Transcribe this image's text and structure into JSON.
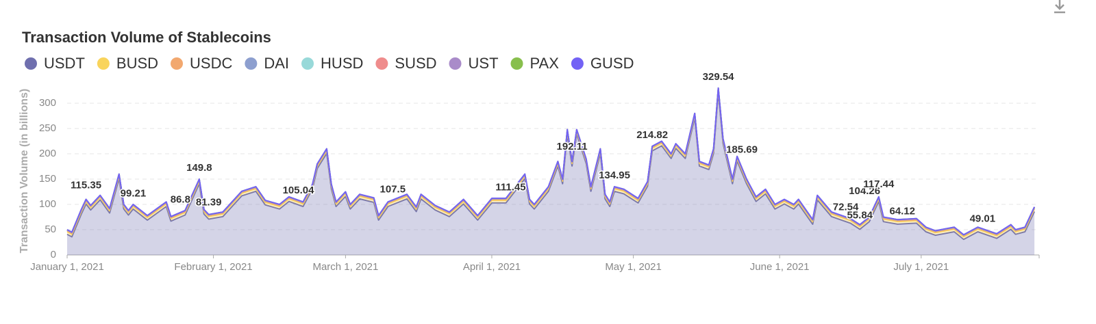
{
  "chart_data": {
    "type": "stacked_area",
    "title": "Transaction Volume of Stablecoins",
    "y_label": "Transaction Volume (in billions)",
    "x": [
      "2021-01-01",
      "2021-01-02",
      "2021-01-04",
      "2021-01-05",
      "2021-01-06",
      "2021-01-08",
      "2021-01-10",
      "2021-01-12",
      "2021-01-13",
      "2021-01-14",
      "2021-01-15",
      "2021-01-18",
      "2021-01-22",
      "2021-01-23",
      "2021-01-26",
      "2021-01-29",
      "2021-01-30",
      "2021-01-31",
      "2021-02-03",
      "2021-02-07",
      "2021-02-10",
      "2021-02-12",
      "2021-02-15",
      "2021-02-17",
      "2021-02-20",
      "2021-02-22",
      "2021-02-23",
      "2021-02-25",
      "2021-02-26",
      "2021-02-27",
      "2021-03-01",
      "2021-03-02",
      "2021-03-04",
      "2021-03-07",
      "2021-03-08",
      "2021-03-10",
      "2021-03-14",
      "2021-03-16",
      "2021-03-17",
      "2021-03-20",
      "2021-03-23",
      "2021-03-26",
      "2021-03-29",
      "2021-04-01",
      "2021-04-04",
      "2021-04-08",
      "2021-04-09",
      "2021-04-10",
      "2021-04-13",
      "2021-04-15",
      "2021-04-16",
      "2021-04-17",
      "2021-04-18",
      "2021-04-19",
      "2021-04-21",
      "2021-04-22",
      "2021-04-24",
      "2021-04-25",
      "2021-04-26",
      "2021-04-27",
      "2021-04-29",
      "2021-05-02",
      "2021-05-04",
      "2021-05-05",
      "2021-05-07",
      "2021-05-09",
      "2021-05-10",
      "2021-05-12",
      "2021-05-14",
      "2021-05-15",
      "2021-05-17",
      "2021-05-18",
      "2021-05-19",
      "2021-05-20",
      "2021-05-22",
      "2021-05-23",
      "2021-05-25",
      "2021-05-27",
      "2021-05-29",
      "2021-05-31",
      "2021-06-02",
      "2021-06-04",
      "2021-06-05",
      "2021-06-08",
      "2021-06-09",
      "2021-06-12",
      "2021-06-16",
      "2021-06-18",
      "2021-06-20",
      "2021-06-22",
      "2021-06-23",
      "2021-06-26",
      "2021-06-30",
      "2021-07-02",
      "2021-07-04",
      "2021-07-08",
      "2021-07-10",
      "2021-07-13",
      "2021-07-17",
      "2021-07-20",
      "2021-07-21",
      "2021-07-23",
      "2021-07-25"
    ],
    "series": [
      {
        "name": "USDT",
        "color": "#6f6fae",
        "values": [
          41,
          36,
          81,
          101,
          89,
          109,
          83,
          151,
          91,
          79,
          91,
          69,
          96,
          67,
          79,
          141,
          81,
          71,
          76,
          117,
          126,
          99,
          91,
          106,
          96,
          131,
          171,
          201,
          131,
          96,
          116,
          91,
          111,
          104,
          69,
          96,
          111,
          86,
          111,
          89,
          76,
          101,
          69,
          103,
          103,
          151,
          101,
          91,
          126,
          176,
          141,
          239,
          176,
          239,
          181,
          126,
          201,
          111,
          96,
          126,
          121,
          103,
          136,
          206,
          216,
          191,
          211,
          191,
          271,
          176,
          169,
          201,
          321,
          221,
          141,
          186,
          141,
          106,
          121,
          91,
          101,
          91,
          101,
          61,
          109,
          76,
          63,
          51,
          66,
          106,
          66,
          61,
          63,
          46,
          39,
          46,
          31,
          46,
          33,
          51,
          41,
          46,
          86
        ]
      },
      {
        "name": "BUSD",
        "color": "#f9d45c",
        "values": [
          5,
          5,
          5,
          5,
          5,
          5,
          5,
          5,
          5,
          5,
          5,
          5,
          5,
          5,
          5,
          5,
          5,
          5,
          5,
          5,
          5,
          5,
          5,
          5,
          5,
          5,
          5,
          5,
          5,
          5,
          5,
          5,
          5,
          5,
          5,
          5,
          5,
          5,
          5,
          5,
          5,
          5,
          5,
          5,
          5,
          5,
          5,
          5,
          5,
          5,
          5,
          5,
          5,
          5,
          5,
          5,
          5,
          5,
          5,
          5,
          5,
          5,
          5,
          5,
          5,
          5,
          5,
          5,
          5,
          5,
          5,
          5,
          5,
          5,
          5,
          5,
          5,
          5,
          5,
          5,
          5,
          5,
          5,
          5,
          5,
          5,
          5,
          5,
          5,
          5,
          5,
          5,
          5,
          5,
          5,
          5,
          5,
          5,
          5,
          5,
          5,
          5,
          5
        ]
      },
      {
        "name": "USDC",
        "color": "#f2a86f",
        "values": [
          2,
          2,
          2,
          2,
          2,
          2,
          2,
          2,
          2,
          2,
          2,
          2,
          2,
          2,
          2,
          2,
          2,
          2,
          2,
          2,
          2,
          2,
          2,
          2,
          2,
          2,
          2,
          2,
          2,
          2,
          2,
          2,
          2,
          2,
          2,
          2,
          2,
          2,
          2,
          2,
          2,
          2,
          2,
          2,
          2,
          2,
          2,
          2,
          2,
          2,
          2,
          2,
          2,
          2,
          2,
          2,
          2,
          2,
          2,
          2,
          2,
          2,
          2,
          2,
          2,
          2,
          2,
          2,
          2,
          2,
          2,
          2,
          2,
          2,
          2,
          2,
          2,
          2,
          2,
          2,
          2,
          2,
          2,
          2,
          2,
          2,
          2,
          2,
          2,
          2,
          2,
          2,
          2,
          2,
          2,
          2,
          2,
          2,
          2,
          2,
          2,
          2,
          2
        ]
      },
      {
        "name": "DAI",
        "color": "#8d9fcf",
        "values": [
          1,
          1,
          1,
          1,
          1,
          1,
          1,
          1,
          1,
          1,
          1,
          1,
          1,
          1,
          1,
          1,
          1,
          1,
          1,
          1,
          1,
          1,
          1,
          1,
          1,
          1,
          1,
          1,
          1,
          1,
          1,
          1,
          1,
          1,
          1,
          1,
          1,
          1,
          1,
          1,
          1,
          1,
          1,
          1,
          1,
          1,
          1,
          1,
          1,
          1,
          1,
          1,
          1,
          1,
          1,
          1,
          1,
          1,
          1,
          1,
          1,
          1,
          1,
          1,
          1,
          1,
          1,
          1,
          1,
          1,
          1,
          1,
          1,
          1,
          1,
          1,
          1,
          1,
          1,
          1,
          1,
          1,
          1,
          1,
          1,
          1,
          1,
          1,
          1,
          1,
          1,
          1,
          1,
          1,
          1,
          1,
          1,
          1,
          1,
          1,
          1,
          1,
          1
        ]
      },
      {
        "name": "HUSD",
        "color": "#98d9d9",
        "values": [
          0.2,
          0.2,
          0.2,
          0.2,
          0.2,
          0.2,
          0.2,
          0.2,
          0.2,
          0.2,
          0.2,
          0.2,
          0.2,
          0.2,
          0.2,
          0.2,
          0.2,
          0.2,
          0.2,
          0.2,
          0.2,
          0.2,
          0.2,
          0.2,
          0.2,
          0.2,
          0.2,
          0.2,
          0.2,
          0.2,
          0.2,
          0.2,
          0.2,
          0.2,
          0.2,
          0.2,
          0.2,
          0.2,
          0.2,
          0.2,
          0.2,
          0.2,
          0.2,
          0.2,
          0.2,
          0.2,
          0.2,
          0.2,
          0.2,
          0.2,
          0.2,
          0.2,
          0.2,
          0.2,
          0.2,
          0.2,
          0.2,
          0.2,
          0.2,
          0.2,
          0.2,
          0.2,
          0.2,
          0.2,
          0.2,
          0.2,
          0.2,
          0.2,
          0.2,
          0.2,
          0.2,
          0.2,
          0.2,
          0.2,
          0.2,
          0.2,
          0.2,
          0.2,
          0.2,
          0.2,
          0.2,
          0.2,
          0.2,
          0.2,
          0.2,
          0.2,
          0.2,
          0.2,
          0.2,
          0.2,
          0.2,
          0.2,
          0.2,
          0.2,
          0.2,
          0.2,
          0.2,
          0.2,
          0.2,
          0.2,
          0.2,
          0.2,
          0.2
        ]
      },
      {
        "name": "SUSD",
        "color": "#ef8c8c",
        "values": [
          0.1,
          0.1,
          0.1,
          0.1,
          0.1,
          0.1,
          0.1,
          0.1,
          0.1,
          0.1,
          0.1,
          0.1,
          0.1,
          0.1,
          0.1,
          0.1,
          0.1,
          0.1,
          0.1,
          0.1,
          0.1,
          0.1,
          0.1,
          0.1,
          0.1,
          0.1,
          0.1,
          0.1,
          0.1,
          0.1,
          0.1,
          0.1,
          0.1,
          0.1,
          0.1,
          0.1,
          0.1,
          0.1,
          0.1,
          0.1,
          0.1,
          0.1,
          0.1,
          0.1,
          0.1,
          0.1,
          0.1,
          0.1,
          0.1,
          0.1,
          0.1,
          0.1,
          0.1,
          0.1,
          0.1,
          0.1,
          0.1,
          0.1,
          0.1,
          0.1,
          0.1,
          0.1,
          0.1,
          0.1,
          0.1,
          0.1,
          0.1,
          0.1,
          0.1,
          0.1,
          0.1,
          0.1,
          0.1,
          0.1,
          0.1,
          0.1,
          0.1,
          0.1,
          0.1,
          0.1,
          0.1,
          0.1,
          0.1,
          0.1,
          0.1,
          0.1,
          0.1,
          0.1,
          0.1,
          0.1,
          0.1,
          0.1,
          0.1,
          0.1,
          0.1,
          0.1,
          0.1,
          0.1,
          0.1,
          0.1,
          0.1,
          0.1,
          0.1
        ]
      },
      {
        "name": "UST",
        "color": "#a98bc9",
        "values": [
          0.5,
          0.5,
          0.5,
          0.5,
          0.5,
          0.5,
          0.5,
          0.5,
          0.5,
          0.5,
          0.5,
          0.5,
          0.5,
          0.5,
          0.5,
          0.5,
          0.5,
          0.5,
          0.5,
          0.5,
          0.5,
          0.5,
          0.5,
          0.5,
          0.5,
          0.5,
          0.5,
          0.5,
          0.5,
          0.5,
          0.5,
          0.5,
          0.5,
          0.5,
          0.5,
          0.5,
          0.5,
          0.5,
          0.5,
          0.5,
          0.5,
          0.5,
          0.5,
          0.5,
          0.5,
          0.5,
          0.5,
          0.5,
          0.5,
          0.5,
          0.5,
          0.5,
          0.5,
          0.5,
          0.5,
          0.5,
          0.5,
          0.5,
          0.5,
          0.5,
          0.5,
          0.5,
          0.5,
          0.5,
          0.5,
          0.5,
          0.5,
          0.5,
          0.5,
          0.5,
          0.5,
          0.5,
          0.5,
          0.5,
          0.5,
          0.5,
          0.5,
          0.5,
          0.5,
          0.5,
          0.5,
          0.5,
          0.5,
          0.5,
          0.5,
          0.5,
          0.5,
          0.5,
          0.5,
          0.5,
          0.5,
          0.5,
          0.5,
          0.5,
          0.5,
          0.5,
          0.5,
          0.5,
          0.5,
          0.5,
          0.5,
          0.5,
          0.5
        ]
      },
      {
        "name": "PAX",
        "color": "#88bf4d",
        "values": [
          0.1,
          0.1,
          0.1,
          0.1,
          0.1,
          0.1,
          0.1,
          0.1,
          0.1,
          0.1,
          0.1,
          0.1,
          0.1,
          0.1,
          0.1,
          0.1,
          0.1,
          0.1,
          0.1,
          0.1,
          0.1,
          0.1,
          0.1,
          0.1,
          0.1,
          0.1,
          0.1,
          0.1,
          0.1,
          0.1,
          0.1,
          0.1,
          0.1,
          0.1,
          0.1,
          0.1,
          0.1,
          0.1,
          0.1,
          0.1,
          0.1,
          0.1,
          0.1,
          0.1,
          0.1,
          0.1,
          0.1,
          0.1,
          0.1,
          0.1,
          0.1,
          0.1,
          0.1,
          0.1,
          0.1,
          0.1,
          0.1,
          0.1,
          0.1,
          0.1,
          0.1,
          0.1,
          0.1,
          0.1,
          0.1,
          0.1,
          0.1,
          0.1,
          0.1,
          0.1,
          0.1,
          0.1,
          0.1,
          0.1,
          0.1,
          0.1,
          0.1,
          0.1,
          0.1,
          0.1,
          0.1,
          0.1,
          0.1,
          0.1,
          0.1,
          0.1,
          0.1,
          0.1,
          0.1,
          0.1,
          0.1,
          0.1,
          0.1,
          0.1,
          0.1,
          0.1,
          0.1,
          0.1,
          0.1,
          0.1,
          0.1,
          0.1,
          0.1
        ]
      },
      {
        "name": "GUSD",
        "color": "#7362f5",
        "values": [
          0.1,
          0.1,
          0.1,
          0.1,
          0.1,
          0.1,
          0.1,
          0.1,
          0.1,
          0.1,
          0.1,
          0.1,
          0.1,
          0.1,
          0.1,
          0.1,
          0.1,
          0.1,
          0.1,
          0.1,
          0.1,
          0.1,
          0.1,
          0.1,
          0.1,
          0.1,
          0.1,
          0.1,
          0.1,
          0.1,
          0.1,
          0.1,
          0.1,
          0.1,
          0.1,
          0.1,
          0.1,
          0.1,
          0.1,
          0.1,
          0.1,
          0.1,
          0.1,
          0.1,
          0.1,
          0.1,
          0.1,
          0.1,
          0.1,
          0.1,
          0.1,
          0.1,
          0.1,
          0.1,
          0.1,
          0.1,
          0.1,
          0.1,
          0.1,
          0.1,
          0.1,
          0.1,
          0.1,
          0.1,
          0.1,
          0.1,
          0.1,
          0.1,
          0.1,
          0.1,
          0.1,
          0.1,
          0.1,
          0.1,
          0.1,
          0.1,
          0.1,
          0.1,
          0.1,
          0.1,
          0.1,
          0.1,
          0.1,
          0.1,
          0.1,
          0.1,
          0.1,
          0.1,
          0.1,
          0.1,
          0.1,
          0.1,
          0.1,
          0.1,
          0.1,
          0.1,
          0.1,
          0.1,
          0.1,
          0.1,
          0.1,
          0.1,
          0.1
        ]
      }
    ],
    "annotations": [
      {
        "x": "2021-01-05",
        "value": 115.35
      },
      {
        "x": "2021-01-15",
        "value": 99.21
      },
      {
        "x": "2021-01-25",
        "value": 86.8
      },
      {
        "x": "2021-01-29",
        "value": 149.8
      },
      {
        "x": "2021-01-31",
        "value": 81.39
      },
      {
        "x": "2021-02-19",
        "value": 105.04
      },
      {
        "x": "2021-03-11",
        "value": 107.5
      },
      {
        "x": "2021-04-05",
        "value": 111.45
      },
      {
        "x": "2021-04-18",
        "value": 192.11
      },
      {
        "x": "2021-04-27",
        "value": 134.95
      },
      {
        "x": "2021-05-05",
        "value": 214.82
      },
      {
        "x": "2021-05-19",
        "value": 329.54
      },
      {
        "x": "2021-05-24",
        "value": 185.69
      },
      {
        "x": "2021-06-15",
        "value": 72.54
      },
      {
        "x": "2021-06-18",
        "value": 55.84
      },
      {
        "x": "2021-06-19",
        "value": 104.26
      },
      {
        "x": "2021-06-22",
        "value": 117.44
      },
      {
        "x": "2021-06-27",
        "value": 64.12
      },
      {
        "x": "2021-07-14",
        "value": 49.01
      }
    ],
    "xlim": [
      "2021-01-01",
      "2021-07-26"
    ],
    "xticks": [
      {
        "value": "2021-01-01",
        "label": "January 1, 2021"
      },
      {
        "value": "2021-02-01",
        "label": "February 1, 2021"
      },
      {
        "value": "2021-03-01",
        "label": "March 1, 2021"
      },
      {
        "value": "2021-04-01",
        "label": "April 1, 2021"
      },
      {
        "value": "2021-05-01",
        "label": "May 1, 2021"
      },
      {
        "value": "2021-06-01",
        "label": "June 1, 2021"
      },
      {
        "value": "2021-07-01",
        "label": "July 1, 2021"
      }
    ],
    "ylim": [
      0,
      320
    ],
    "yticks": [
      0,
      50,
      100,
      150,
      200,
      250,
      300
    ],
    "grid": true,
    "legend": "top"
  }
}
